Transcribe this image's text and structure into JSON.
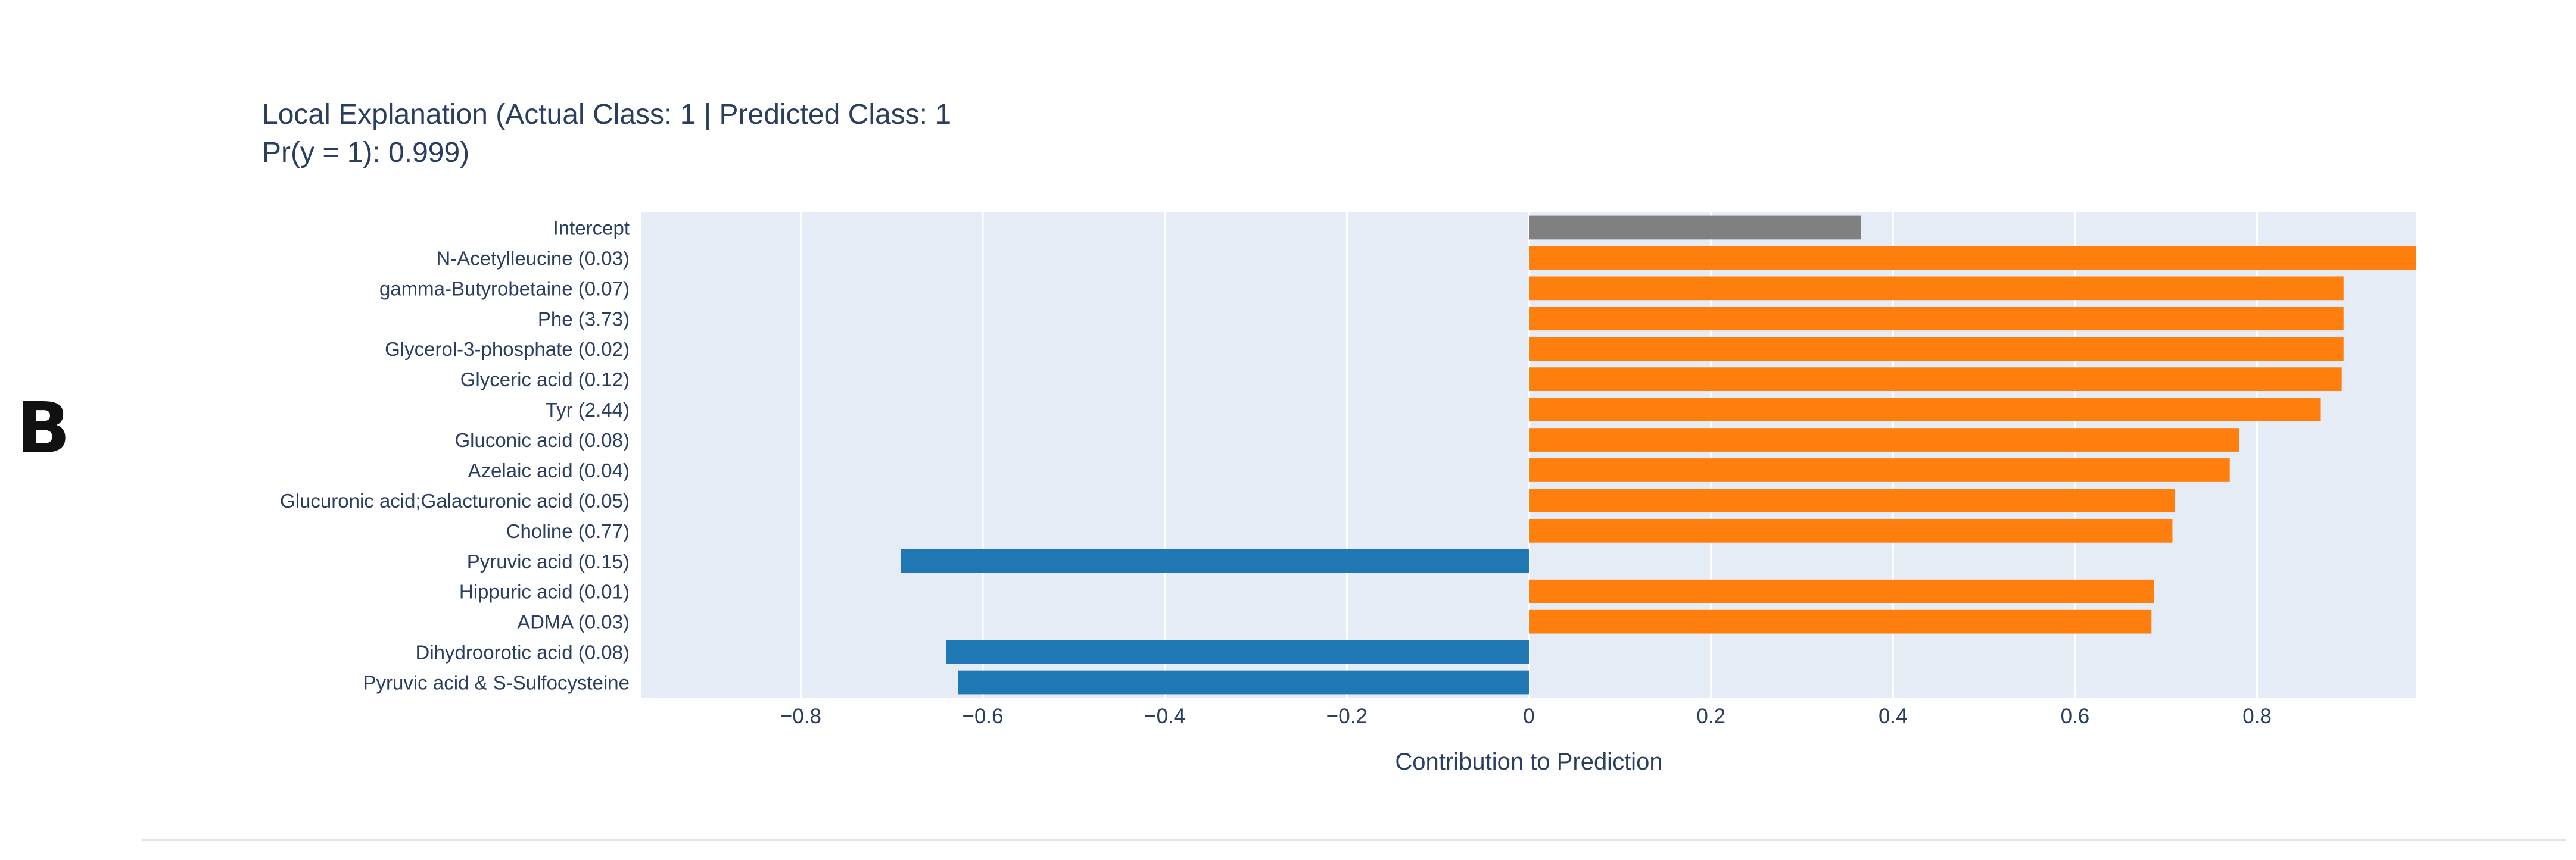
{
  "panel_label": "B",
  "chart_data": {
    "type": "bar",
    "orientation": "horizontal",
    "title_lines": [
      "Local Explanation (Actual Class: 1 | Predicted Class: 1",
      "Pr(y = 1): 0.999)"
    ],
    "xlabel": "Contribution to Prediction",
    "ylabel": "",
    "xlim": [
      -0.975,
      0.975
    ],
    "xticks": [
      -0.8,
      -0.6,
      -0.4,
      -0.2,
      0,
      0.2,
      0.4,
      0.6,
      0.8
    ],
    "xtick_labels": [
      "−0.8",
      "−0.6",
      "−0.4",
      "−0.2",
      "0",
      "0.2",
      "0.4",
      "0.6",
      "0.8"
    ],
    "grid": true,
    "colors": {
      "intercept": "#808080",
      "positive": "#ff7f0e",
      "negative": "#1f77b4",
      "plot_background": "#e5ecf6",
      "gridline": "#ffffff",
      "text": "#2a3f5f"
    },
    "categories": [
      "Intercept",
      "N-Acetylleucine (0.03)",
      "gamma-Butyrobetaine (0.07)",
      "Phe (3.73)",
      "Glycerol-3-phosphate (0.02)",
      "Glyceric acid (0.12)",
      "Tyr (2.44)",
      "Gluconic acid (0.08)",
      "Azelaic acid (0.04)",
      "Glucuronic acid;Galacturonic acid (0.05)",
      "Choline (0.77)",
      "Pyruvic acid (0.15)",
      "Hippuric acid (0.01)",
      "ADMA (0.03)",
      "Dihydroorotic acid (0.08)",
      "Pyruvic acid & S-Sulfocysteine"
    ],
    "values": [
      0.365,
      0.975,
      0.895,
      0.895,
      0.895,
      0.893,
      0.87,
      0.78,
      0.77,
      0.71,
      0.707,
      -0.69,
      0.687,
      0.684,
      -0.64,
      -0.627
    ],
    "bar_colors": [
      "intercept",
      "positive",
      "positive",
      "positive",
      "positive",
      "positive",
      "positive",
      "positive",
      "positive",
      "positive",
      "positive",
      "negative",
      "positive",
      "positive",
      "negative",
      "negative"
    ]
  }
}
